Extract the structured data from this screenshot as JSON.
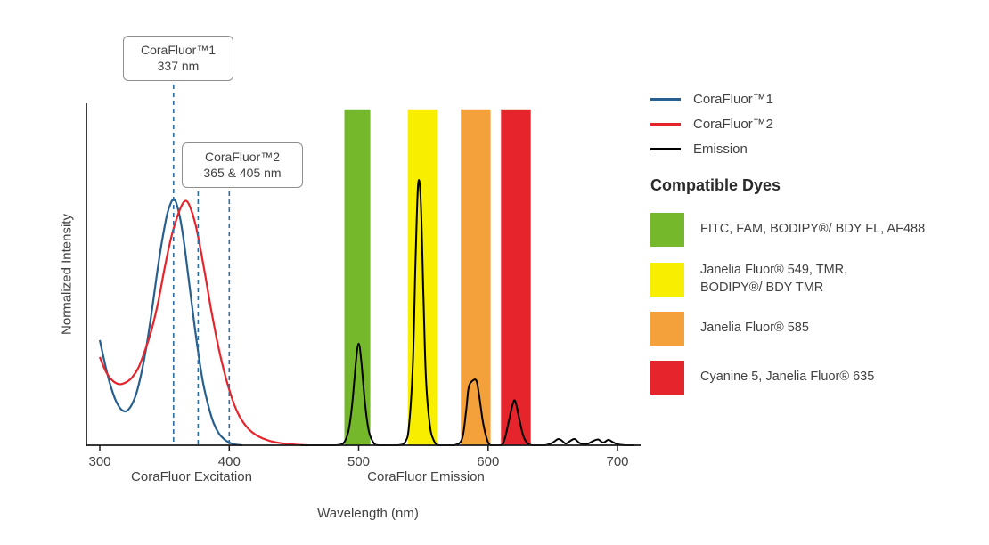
{
  "annotations": [
    {
      "title": "CoraFluor™1",
      "subtitle": "337 nm",
      "lines_nm": [
        357
      ]
    },
    {
      "title": "CoraFluor™2",
      "subtitle": "365 & 405 nm",
      "lines_nm": [
        376,
        400
      ]
    }
  ],
  "x_section_labels": {
    "excitation": "CoraFluor Excitation",
    "emission": "CoraFluor Emission"
  },
  "legend": [
    {
      "id": "corafluor1",
      "label": "CoraFluor™1",
      "color": "#27608F"
    },
    {
      "id": "corafluor2",
      "label": "CoraFluor™2",
      "color": "#E6242B"
    },
    {
      "id": "emission",
      "label": "Emission",
      "color": "#000000"
    }
  ],
  "compatible_dyes": {
    "heading": "Compatible Dyes",
    "items": [
      {
        "id": "green",
        "color": "#76B82B",
        "label": "FITC, FAM, BODIPY®/ BDY FL, AF488"
      },
      {
        "id": "yellow",
        "color": "#F8EF00",
        "label": "Janelia Fluor® 549, TMR,",
        "label2": "BODIPY®/ BDY TMR"
      },
      {
        "id": "orange",
        "color": "#F5A13B",
        "label": "Janelia Fluor® 585"
      },
      {
        "id": "red",
        "color": "#E6242B",
        "label": "Cyanine 5, Janelia Fluor® 635"
      }
    ]
  },
  "chart_data": {
    "type": "line",
    "xlabel": "Wavelength (nm)",
    "ylabel": "Normalized Intensity",
    "xlim": [
      300,
      715
    ],
    "ylim": [
      0,
      1
    ],
    "x_ticks": [
      300,
      400,
      500,
      600,
      700
    ],
    "grid": false,
    "bands": [
      {
        "name": "green",
        "from": 489,
        "to": 509,
        "color": "#76B82B"
      },
      {
        "name": "yellow",
        "from": 538,
        "to": 561,
        "color": "#F8EF00"
      },
      {
        "name": "orange",
        "from": 579,
        "to": 602,
        "color": "#F5A13B"
      },
      {
        "name": "red",
        "from": 610,
        "to": 633,
        "color": "#E6242B"
      }
    ],
    "dashed_line_color": "#2E6DA4",
    "series": [
      {
        "id": "corafluor1-excitation",
        "name": "CoraFluor™1",
        "color": "#27608F",
        "width": 2.2,
        "points": [
          [
            300,
            0.31
          ],
          [
            304,
            0.24
          ],
          [
            308,
            0.18
          ],
          [
            312,
            0.135
          ],
          [
            316,
            0.108
          ],
          [
            320,
            0.1
          ],
          [
            324,
            0.115
          ],
          [
            328,
            0.15
          ],
          [
            332,
            0.21
          ],
          [
            336,
            0.29
          ],
          [
            340,
            0.39
          ],
          [
            344,
            0.5
          ],
          [
            348,
            0.6
          ],
          [
            352,
            0.68
          ],
          [
            355,
            0.715
          ],
          [
            357,
            0.725
          ],
          [
            359,
            0.715
          ],
          [
            362,
            0.67
          ],
          [
            365,
            0.6
          ],
          [
            368,
            0.51
          ],
          [
            371,
            0.42
          ],
          [
            374,
            0.33
          ],
          [
            377,
            0.25
          ],
          [
            380,
            0.18
          ],
          [
            384,
            0.115
          ],
          [
            388,
            0.065
          ],
          [
            392,
            0.035
          ],
          [
            396,
            0.018
          ],
          [
            400,
            0.008
          ],
          [
            405,
            0.002
          ],
          [
            410,
            0
          ]
        ]
      },
      {
        "id": "corafluor2-excitation",
        "name": "CoraFluor™2",
        "color": "#E6242B",
        "width": 2.2,
        "points": [
          [
            300,
            0.26
          ],
          [
            305,
            0.215
          ],
          [
            310,
            0.19
          ],
          [
            315,
            0.18
          ],
          [
            320,
            0.185
          ],
          [
            325,
            0.2
          ],
          [
            330,
            0.23
          ],
          [
            335,
            0.28
          ],
          [
            340,
            0.34
          ],
          [
            345,
            0.42
          ],
          [
            350,
            0.52
          ],
          [
            355,
            0.61
          ],
          [
            360,
            0.675
          ],
          [
            364,
            0.712
          ],
          [
            367,
            0.72
          ],
          [
            370,
            0.7
          ],
          [
            374,
            0.65
          ],
          [
            378,
            0.575
          ],
          [
            382,
            0.49
          ],
          [
            386,
            0.4
          ],
          [
            390,
            0.32
          ],
          [
            394,
            0.25
          ],
          [
            398,
            0.19
          ],
          [
            402,
            0.14
          ],
          [
            406,
            0.1
          ],
          [
            410,
            0.072
          ],
          [
            415,
            0.048
          ],
          [
            420,
            0.032
          ],
          [
            426,
            0.02
          ],
          [
            432,
            0.012
          ],
          [
            440,
            0.006
          ],
          [
            450,
            0.002
          ],
          [
            460,
            0
          ]
        ]
      },
      {
        "id": "emission",
        "name": "Emission",
        "color": "#000000",
        "width": 2,
        "points": [
          [
            455,
            0
          ],
          [
            470,
            0
          ],
          [
            482,
            0
          ],
          [
            488,
            0.005
          ],
          [
            492,
            0.04
          ],
          [
            495,
            0.12
          ],
          [
            498,
            0.25
          ],
          [
            500,
            0.3
          ],
          [
            502,
            0.25
          ],
          [
            505,
            0.12
          ],
          [
            508,
            0.04
          ],
          [
            512,
            0.005
          ],
          [
            516,
            0
          ],
          [
            530,
            0
          ],
          [
            536,
            0.01
          ],
          [
            539,
            0.06
          ],
          [
            542,
            0.25
          ],
          [
            544,
            0.55
          ],
          [
            546,
            0.77
          ],
          [
            548,
            0.72
          ],
          [
            550,
            0.45
          ],
          [
            552,
            0.2
          ],
          [
            555,
            0.06
          ],
          [
            558,
            0.015
          ],
          [
            562,
            0
          ],
          [
            574,
            0
          ],
          [
            580,
            0.02
          ],
          [
            583,
            0.1
          ],
          [
            585,
            0.17
          ],
          [
            588,
            0.19
          ],
          [
            591,
            0.19
          ],
          [
            593,
            0.15
          ],
          [
            596,
            0.07
          ],
          [
            599,
            0.02
          ],
          [
            602,
            0
          ],
          [
            610,
            0
          ],
          [
            613,
            0.02
          ],
          [
            616,
            0.07
          ],
          [
            619,
            0.12
          ],
          [
            621,
            0.13
          ],
          [
            624,
            0.08
          ],
          [
            627,
            0.03
          ],
          [
            630,
            0.008
          ],
          [
            634,
            0
          ],
          [
            644,
            0
          ],
          [
            650,
            0.008
          ],
          [
            654,
            0.018
          ],
          [
            657,
            0.014
          ],
          [
            660,
            0.005
          ],
          [
            664,
            0.014
          ],
          [
            667,
            0.018
          ],
          [
            671,
            0.006
          ],
          [
            676,
            0.003
          ],
          [
            681,
            0.012
          ],
          [
            685,
            0.017
          ],
          [
            689,
            0.008
          ],
          [
            693,
            0.016
          ],
          [
            696,
            0.01
          ],
          [
            700,
            0.003
          ],
          [
            706,
            0
          ],
          [
            713,
            0
          ]
        ]
      }
    ]
  }
}
